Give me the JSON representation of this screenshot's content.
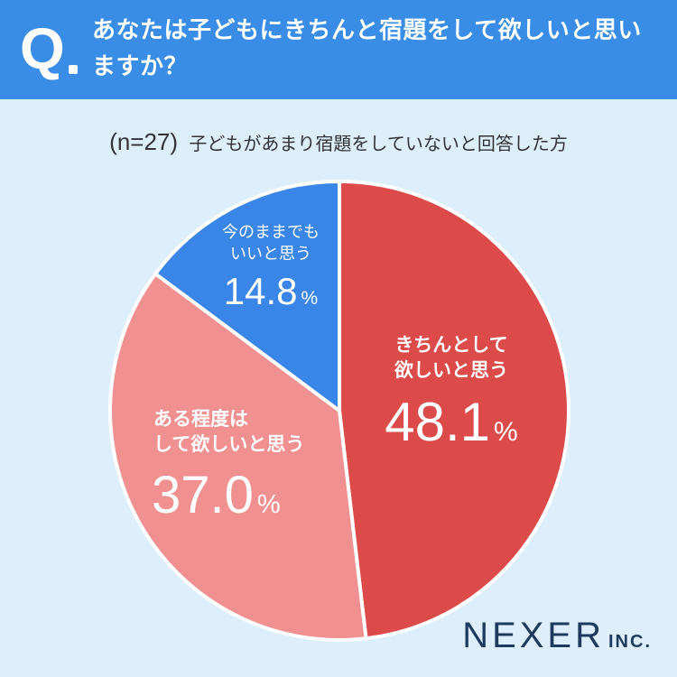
{
  "header": {
    "q_mark": "Q",
    "question": "あなたは子どもにきちんと宿題をして欲しいと思いますか？"
  },
  "sample": {
    "n_label": "(n=27)",
    "description": "子どもがあまり宿題をしていないと回答した方"
  },
  "chart_data": {
    "type": "pie",
    "title": "",
    "unit": "%",
    "slices": [
      {
        "label_line1": "きちんとして",
        "label_line2": "欲しいと思う",
        "value": 48.1,
        "value_text": "48.1",
        "color": "#dc4a4a"
      },
      {
        "label_line1": "ある程度は",
        "label_line2": "して欲しいと思う",
        "value": 37.0,
        "value_text": "37.0",
        "color": "#f09090"
      },
      {
        "label_line1": "今のままでも",
        "label_line2": "いいと思う",
        "value": 14.8,
        "value_text": "14.8",
        "color": "#3a86e8"
      }
    ]
  },
  "logo": {
    "main": "NEXER",
    "inc": "INC."
  }
}
